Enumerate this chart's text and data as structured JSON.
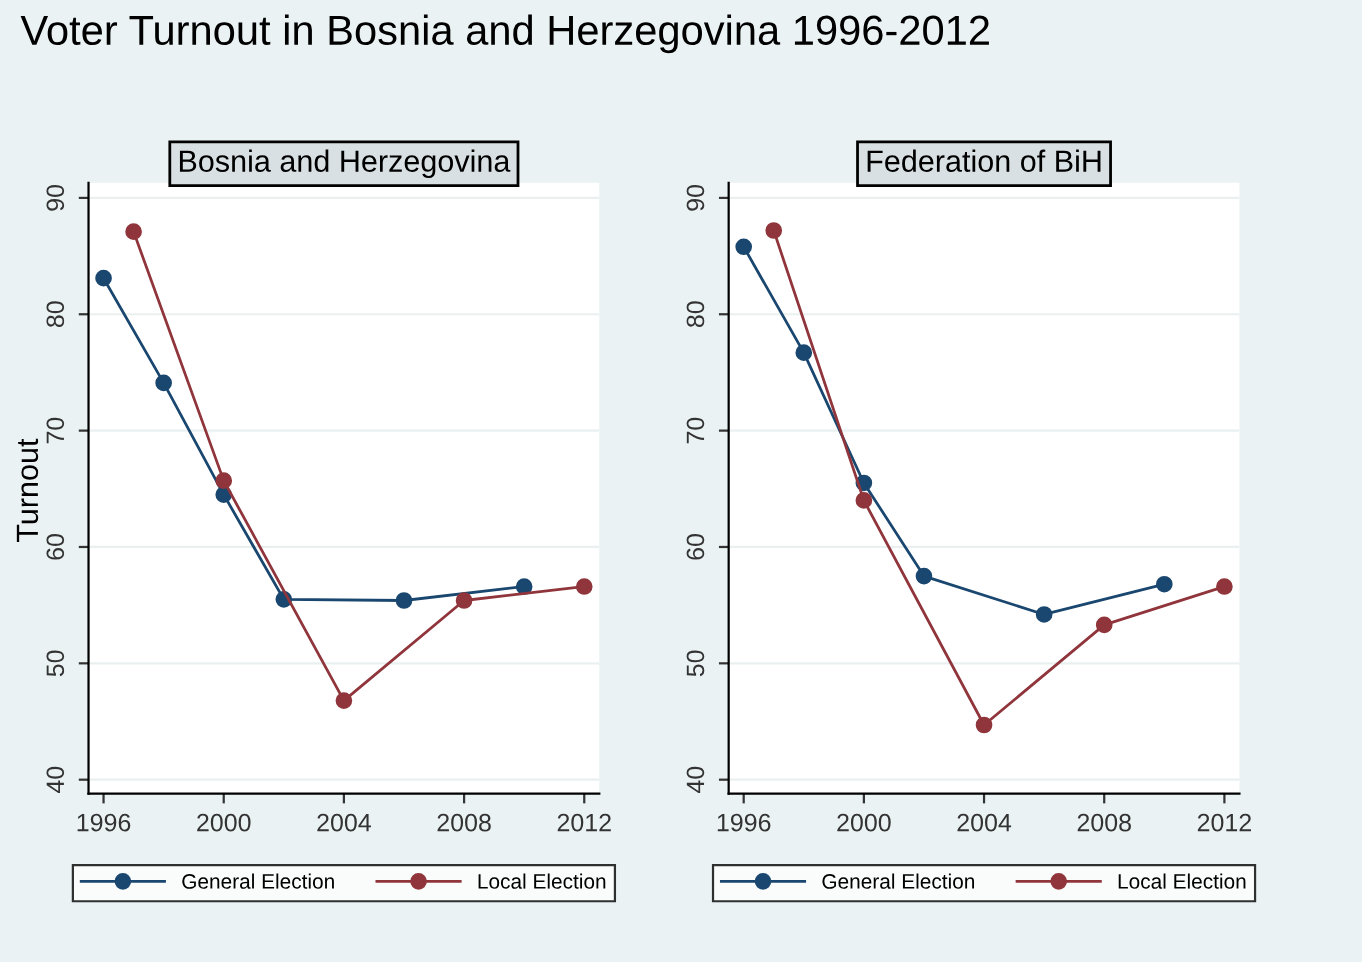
{
  "chart_data": [
    {
      "type": "line",
      "title": "Voter Turnout in Bosnia and Herzegovina 1996-2012",
      "subtitle": "Bosnia and Herzegovina",
      "ylabel": "Turnout",
      "series": [
        {
          "name": "General Election",
          "color": "#1a476f",
          "x": [
            1996,
            1998,
            2000,
            2002,
            2006,
            2010
          ],
          "values": [
            83.1,
            74.1,
            64.5,
            55.5,
            55.4,
            56.6
          ]
        },
        {
          "name": "Local Election",
          "color": "#90353b",
          "x": [
            1997,
            2000,
            2004,
            2008,
            2012
          ],
          "values": [
            87.1,
            65.7,
            46.8,
            55.4,
            56.6
          ]
        }
      ],
      "xlim": [
        1995.5,
        2012.5
      ],
      "xticks": [
        1996,
        2000,
        2004,
        2008,
        2012
      ],
      "ylim": [
        38.8,
        91.3
      ],
      "yticks": [
        40,
        50,
        60,
        70,
        80,
        90
      ],
      "grid": "y",
      "legend": "bottom",
      "marker": "circle",
      "line_style": "solid"
    },
    {
      "type": "line",
      "subtitle": "Federation of BiH",
      "series": [
        {
          "name": "General Election",
          "color": "#1a476f",
          "x": [
            1996,
            1998,
            2000,
            2002,
            2006,
            2010
          ],
          "values": [
            85.8,
            76.7,
            65.5,
            57.5,
            54.2,
            56.8
          ]
        },
        {
          "name": "Local Election",
          "color": "#90353b",
          "x": [
            1997,
            2000,
            2004,
            2008,
            2012
          ],
          "values": [
            87.2,
            64.0,
            44.7,
            53.3,
            56.6
          ]
        }
      ],
      "xlim": [
        1995.5,
        2012.5
      ],
      "xticks": [
        1996,
        2000,
        2004,
        2008,
        2012
      ],
      "ylim": [
        38.8,
        91.3
      ],
      "yticks": [
        40,
        50,
        60,
        70,
        80,
        90
      ],
      "grid": "y",
      "legend": "bottom",
      "marker": "circle",
      "line_style": "solid"
    }
  ]
}
